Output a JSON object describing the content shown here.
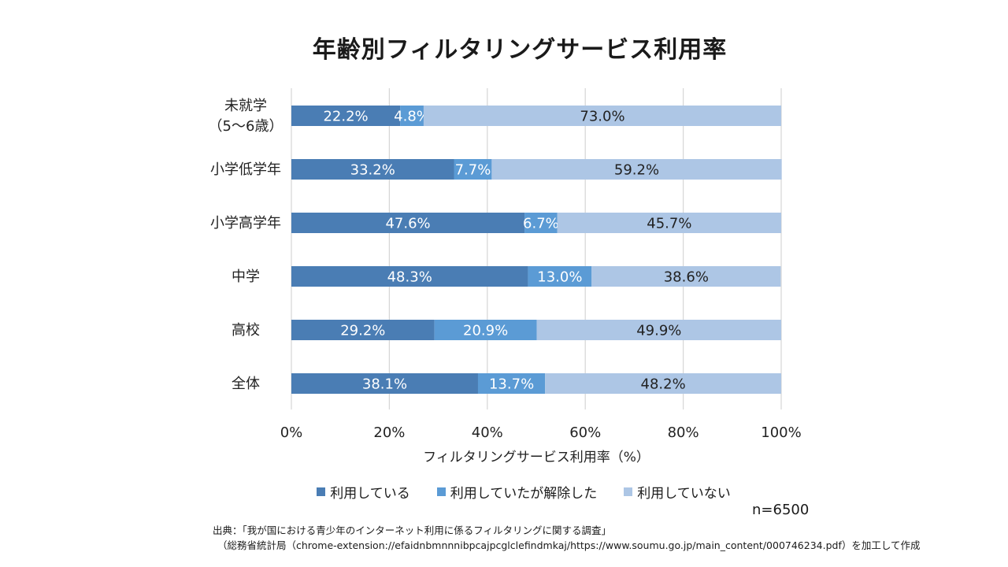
{
  "title": "年齢別フィルタリングサービス利用率",
  "chart_data": {
    "type": "bar",
    "orientation": "horizontal",
    "stacked": true,
    "categories": [
      "未就学\n（5～6歳）",
      "小学低学年",
      "小学高学年",
      "中学",
      "高校",
      "全体"
    ],
    "series": [
      {
        "name": "利用している",
        "values": [
          22.2,
          33.2,
          47.6,
          48.3,
          29.2,
          38.1
        ],
        "color": "#4a7db4"
      },
      {
        "name": "利用していたが解除した",
        "values": [
          4.8,
          7.7,
          6.7,
          13.0,
          20.9,
          13.7
        ],
        "color": "#5b9bd5"
      },
      {
        "name": "利用していない",
        "values": [
          73.0,
          59.2,
          45.7,
          38.6,
          49.9,
          48.2
        ],
        "color": "#adc6e5"
      }
    ],
    "value_labels": [
      [
        "22.2%",
        "4.8%",
        "73.0%"
      ],
      [
        "33.2%",
        "7.7%",
        "59.2%"
      ],
      [
        "47.6%",
        "6.7%",
        "45.7%"
      ],
      [
        "48.3%",
        "13.0%",
        "38.6%"
      ],
      [
        "29.2%",
        "20.9%",
        "49.9%"
      ],
      [
        "38.1%",
        "13.7%",
        "48.2%"
      ]
    ],
    "xticks": [
      "0%",
      "20%",
      "40%",
      "60%",
      "80%",
      "100%"
    ],
    "xlim": [
      0,
      100
    ],
    "xlabel": "フィルタリングサービス利用率（%）",
    "grid": true,
    "legend_position": "bottom"
  },
  "sample_note": "n=6500",
  "source": {
    "line1": "出典：「我が国における青少年のインターネット利用に係るフィルタリングに関する調査」",
    "line2": "（総務省統計局（chrome-extension://efaidnbmnnnibpcajpcglclefindmkaj/https://www.soumu.go.jp/main_content/000746234.pdf）を加工して作成"
  }
}
